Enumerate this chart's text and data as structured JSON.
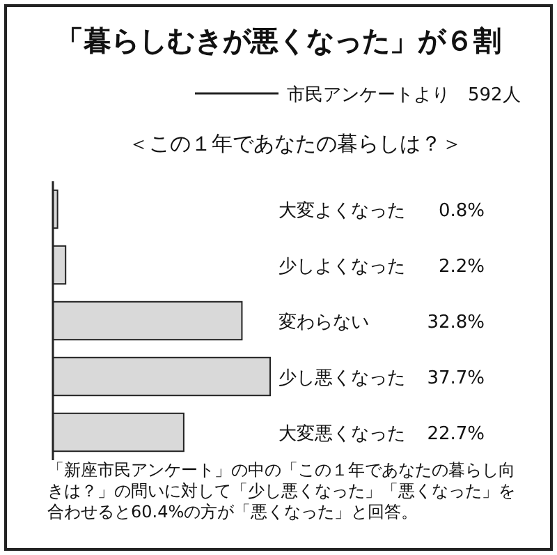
{
  "chart_data": {
    "type": "bar",
    "title": "「暮らしむきが悪くなった」が６割",
    "subtitle": "市民アンケートより　592人",
    "xlabel": "＜この１年であなたの暮らしは？＞",
    "orientation": "horizontal",
    "categories": [
      "大変よくなった",
      "少しよくなった",
      "変わらない",
      "少し悪くなった",
      "大変悪くなった"
    ],
    "values": [
      0.8,
      2.2,
      32.8,
      37.7,
      22.7
    ],
    "value_labels": [
      "0.8%",
      "2.2%",
      "32.8%",
      "37.7%",
      "22.7%"
    ],
    "color": "#d9d9d9",
    "annotations": [
      "「新座市民アンケート」の中の「この１年であなたの暮らし向きは？」の問いに対して「少し悪くなった」「悪くなった」を合わせると60.4%の方が「悪くなった」と回答。"
    ]
  }
}
